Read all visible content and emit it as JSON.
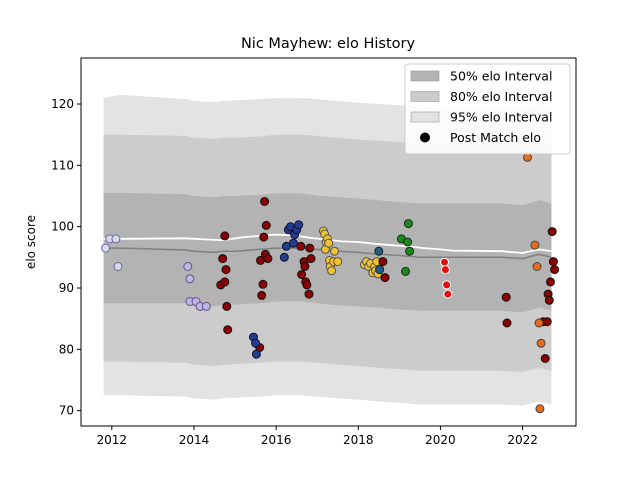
{
  "chart_data": {
    "type": "scatter",
    "title": "Nic Mayhew: elo History",
    "xlabel": "",
    "ylabel": "elo score",
    "xlim": [
      2011.25,
      2023.3
    ],
    "ylim": [
      67.5,
      127.5
    ],
    "xticks": [
      2012,
      2014,
      2016,
      2018,
      2020,
      2022
    ],
    "xtick_labels": [
      "2012",
      "2014",
      "2016",
      "2018",
      "2020",
      "2022"
    ],
    "yticks": [
      70,
      80,
      90,
      100,
      110,
      120
    ],
    "ytick_labels": [
      "70",
      "80",
      "90",
      "100",
      "110",
      "120"
    ],
    "legend_position": "top-right",
    "legend": [
      {
        "label": "50% elo Interval",
        "kind": "band",
        "color": "#b3b3b3"
      },
      {
        "label": "80% elo Interval",
        "kind": "band",
        "color": "#cccccc"
      },
      {
        "label": "95% elo Interval",
        "kind": "band",
        "color": "#e3e3e3"
      },
      {
        "label": "Post Match elo",
        "kind": "marker",
        "color": "#000000"
      }
    ],
    "bands": {
      "x": [
        2011.8,
        2012.2,
        2013.8,
        2014.0,
        2014.5,
        2014.7,
        2015.0,
        2015.6,
        2016.0,
        2016.6,
        2017.0,
        2017.5,
        2018.0,
        2018.5,
        2019.0,
        2019.5,
        2020.0,
        2020.3,
        2021.5,
        2022.0,
        2022.4,
        2022.7
      ],
      "mean": [
        96.5,
        96.5,
        96.2,
        96.0,
        95.8,
        96.0,
        96.0,
        96.3,
        96.5,
        96.5,
        96.3,
        96.0,
        95.8,
        95.5,
        95.3,
        95.0,
        95.0,
        95.0,
        95.0,
        94.8,
        95.5,
        95.0
      ],
      "p50": [
        [
          87.5,
          105.5
        ],
        [
          87.5,
          105.5
        ],
        [
          87.5,
          105.3
        ],
        [
          87.0,
          105.0
        ],
        [
          87.0,
          104.8
        ],
        [
          87.2,
          105.0
        ],
        [
          87.3,
          105.0
        ],
        [
          87.5,
          105.2
        ],
        [
          87.8,
          105.4
        ],
        [
          87.8,
          105.4
        ],
        [
          87.5,
          105.1
        ],
        [
          87.2,
          104.8
        ],
        [
          87.0,
          104.6
        ],
        [
          86.8,
          104.3
        ],
        [
          86.5,
          104.0
        ],
        [
          86.3,
          103.8
        ],
        [
          86.3,
          103.8
        ],
        [
          86.3,
          103.8
        ],
        [
          86.3,
          103.8
        ],
        [
          86.0,
          103.5
        ],
        [
          86.8,
          104.3
        ],
        [
          86.3,
          103.8
        ]
      ],
      "p80": [
        [
          78.0,
          115.0
        ],
        [
          78.0,
          115.0
        ],
        [
          77.8,
          114.8
        ],
        [
          77.5,
          114.5
        ],
        [
          77.3,
          114.3
        ],
        [
          77.5,
          114.5
        ],
        [
          77.6,
          114.5
        ],
        [
          77.8,
          114.7
        ],
        [
          78.0,
          115.0
        ],
        [
          78.0,
          115.0
        ],
        [
          77.8,
          114.8
        ],
        [
          77.5,
          114.5
        ],
        [
          77.3,
          114.2
        ],
        [
          77.0,
          114.0
        ],
        [
          76.8,
          113.8
        ],
        [
          76.5,
          113.5
        ],
        [
          76.5,
          113.5
        ],
        [
          76.5,
          113.5
        ],
        [
          76.5,
          113.5
        ],
        [
          76.3,
          113.3
        ],
        [
          77.0,
          114.0
        ],
        [
          76.5,
          113.5
        ]
      ],
      "p95": [
        [
          72.5,
          121.0
        ],
        [
          72.5,
          121.5
        ],
        [
          72.3,
          120.8
        ],
        [
          72.0,
          120.5
        ],
        [
          71.8,
          120.3
        ],
        [
          72.0,
          120.5
        ],
        [
          72.1,
          120.6
        ],
        [
          72.3,
          120.8
        ],
        [
          72.5,
          121.0
        ],
        [
          72.5,
          121.0
        ],
        [
          72.3,
          120.8
        ],
        [
          72.0,
          120.5
        ],
        [
          71.8,
          120.2
        ],
        [
          71.5,
          120.0
        ],
        [
          71.3,
          119.8
        ],
        [
          71.0,
          119.5
        ],
        [
          71.0,
          119.5
        ],
        [
          71.0,
          119.5
        ],
        [
          71.0,
          119.5
        ],
        [
          70.8,
          119.3
        ],
        [
          71.5,
          120.0
        ],
        [
          71.0,
          119.5
        ]
      ]
    },
    "mean_line": {
      "x": [
        2011.8,
        2012.2,
        2013.8,
        2014.3,
        2014.7,
        2015.2,
        2015.6,
        2016.0,
        2016.4,
        2016.8,
        2017.2,
        2017.6,
        2018.0,
        2018.4,
        2018.8,
        2019.2,
        2019.6,
        2020.0,
        2020.3,
        2021.5,
        2022.0,
        2022.4,
        2022.7
      ],
      "y": [
        98.0,
        98.0,
        98.1,
        97.9,
        97.8,
        98.3,
        98.5,
        98.7,
        98.6,
        98.2,
        97.9,
        97.6,
        97.5,
        97.2,
        97.0,
        96.8,
        96.5,
        96.3,
        96.1,
        96.0,
        95.7,
        96.3,
        96.0
      ]
    },
    "series": [
      {
        "color": "#d8d8f0",
        "edge": "#6a6a9a",
        "points": [
          [
            2011.85,
            96.5
          ],
          [
            2011.95,
            98.0
          ],
          [
            2012.1,
            98.0
          ],
          [
            2012.15,
            93.5
          ]
        ]
      },
      {
        "color": "#b8b8e0",
        "edge": "#6a4c8c",
        "points": [
          [
            2013.85,
            93.5
          ],
          [
            2013.9,
            91.5
          ],
          [
            2013.9,
            87.8
          ],
          [
            2014.05,
            87.8
          ],
          [
            2014.15,
            87.0
          ],
          [
            2014.3,
            87.0
          ]
        ]
      },
      {
        "color": "#8b0000",
        "edge": "#111111",
        "points": [
          [
            2014.65,
            90.5
          ],
          [
            2014.7,
            94.8
          ],
          [
            2014.75,
            98.5
          ],
          [
            2014.75,
            91.0
          ],
          [
            2014.78,
            93.0
          ],
          [
            2014.8,
            87.0
          ],
          [
            2014.82,
            83.2
          ],
          [
            2015.6,
            80.3
          ],
          [
            2015.62,
            94.5
          ],
          [
            2015.65,
            88.8
          ],
          [
            2015.68,
            90.6
          ],
          [
            2015.7,
            98.3
          ],
          [
            2015.72,
            104.1
          ],
          [
            2015.74,
            95.5
          ],
          [
            2015.76,
            100.2
          ],
          [
            2015.8,
            94.8
          ],
          [
            2016.6,
            96.8
          ],
          [
            2016.62,
            92.2
          ],
          [
            2016.68,
            94.3
          ],
          [
            2016.7,
            93.5
          ],
          [
            2016.72,
            91.0
          ],
          [
            2016.75,
            90.5
          ],
          [
            2016.8,
            89.0
          ],
          [
            2016.82,
            96.5
          ],
          [
            2016.85,
            94.8
          ]
        ]
      },
      {
        "color": "#223f8f",
        "edge": "#111133",
        "points": [
          [
            2015.45,
            82.0
          ],
          [
            2015.5,
            81.0
          ],
          [
            2015.52,
            79.2
          ],
          [
            2016.2,
            95.0
          ],
          [
            2016.25,
            96.8
          ],
          [
            2016.3,
            99.5
          ],
          [
            2016.35,
            100.0
          ],
          [
            2016.42,
            97.3
          ],
          [
            2016.45,
            98.7
          ],
          [
            2016.5,
            99.5
          ],
          [
            2016.55,
            100.3
          ]
        ]
      },
      {
        "color": "#f2c12e",
        "edge": "#555555",
        "points": [
          [
            2017.15,
            99.3
          ],
          [
            2017.18,
            98.8
          ],
          [
            2017.2,
            96.3
          ],
          [
            2017.22,
            97.5
          ],
          [
            2017.25,
            98.0
          ],
          [
            2017.28,
            97.3
          ],
          [
            2017.3,
            94.5
          ],
          [
            2017.32,
            93.5
          ],
          [
            2017.35,
            92.8
          ],
          [
            2017.4,
            94.3
          ],
          [
            2017.42,
            96.0
          ],
          [
            2017.5,
            94.3
          ],
          [
            2018.15,
            93.8
          ],
          [
            2018.2,
            94.3
          ],
          [
            2018.25,
            93.5
          ],
          [
            2018.3,
            94.0
          ],
          [
            2018.35,
            92.5
          ],
          [
            2018.4,
            93.5
          ],
          [
            2018.42,
            92.8
          ],
          [
            2018.45,
            94.3
          ],
          [
            2018.48,
            92.3
          ]
        ]
      },
      {
        "color": "#1b5e8a",
        "edge": "#222222",
        "points": [
          [
            2018.5,
            96.0
          ],
          [
            2018.52,
            93.0
          ]
        ]
      },
      {
        "color": "#8b0000",
        "edge": "#111111",
        "points": [
          [
            2018.6,
            94.3
          ],
          [
            2018.65,
            91.7
          ]
        ]
      },
      {
        "color": "#1a8a1a",
        "edge": "#222222",
        "points": [
          [
            2019.05,
            98.0
          ],
          [
            2019.15,
            92.7
          ],
          [
            2019.2,
            97.5
          ],
          [
            2019.22,
            100.5
          ],
          [
            2019.25,
            96.0
          ]
        ]
      },
      {
        "color": "#e01010",
        "edge": "#ffffff",
        "points": [
          [
            2020.1,
            94.2
          ],
          [
            2020.12,
            93.0
          ],
          [
            2020.15,
            90.5
          ],
          [
            2020.18,
            89.0
          ]
        ]
      },
      {
        "color": "#8b0000",
        "edge": "#111111",
        "points": [
          [
            2021.6,
            88.5
          ],
          [
            2021.62,
            84.3
          ],
          [
            2022.5,
            84.5
          ],
          [
            2022.55,
            78.5
          ],
          [
            2022.6,
            84.5
          ],
          [
            2022.62,
            89.0
          ],
          [
            2022.65,
            88.0
          ],
          [
            2022.68,
            91.0
          ],
          [
            2022.72,
            99.2
          ],
          [
            2022.75,
            94.3
          ],
          [
            2022.78,
            93.0
          ]
        ]
      },
      {
        "color": "#e86a1a",
        "edge": "#444444",
        "points": [
          [
            2022.12,
            111.3
          ],
          [
            2022.3,
            97.0
          ],
          [
            2022.35,
            93.5
          ],
          [
            2022.4,
            84.3
          ],
          [
            2022.42,
            70.3
          ],
          [
            2022.45,
            81.0
          ]
        ]
      }
    ]
  }
}
